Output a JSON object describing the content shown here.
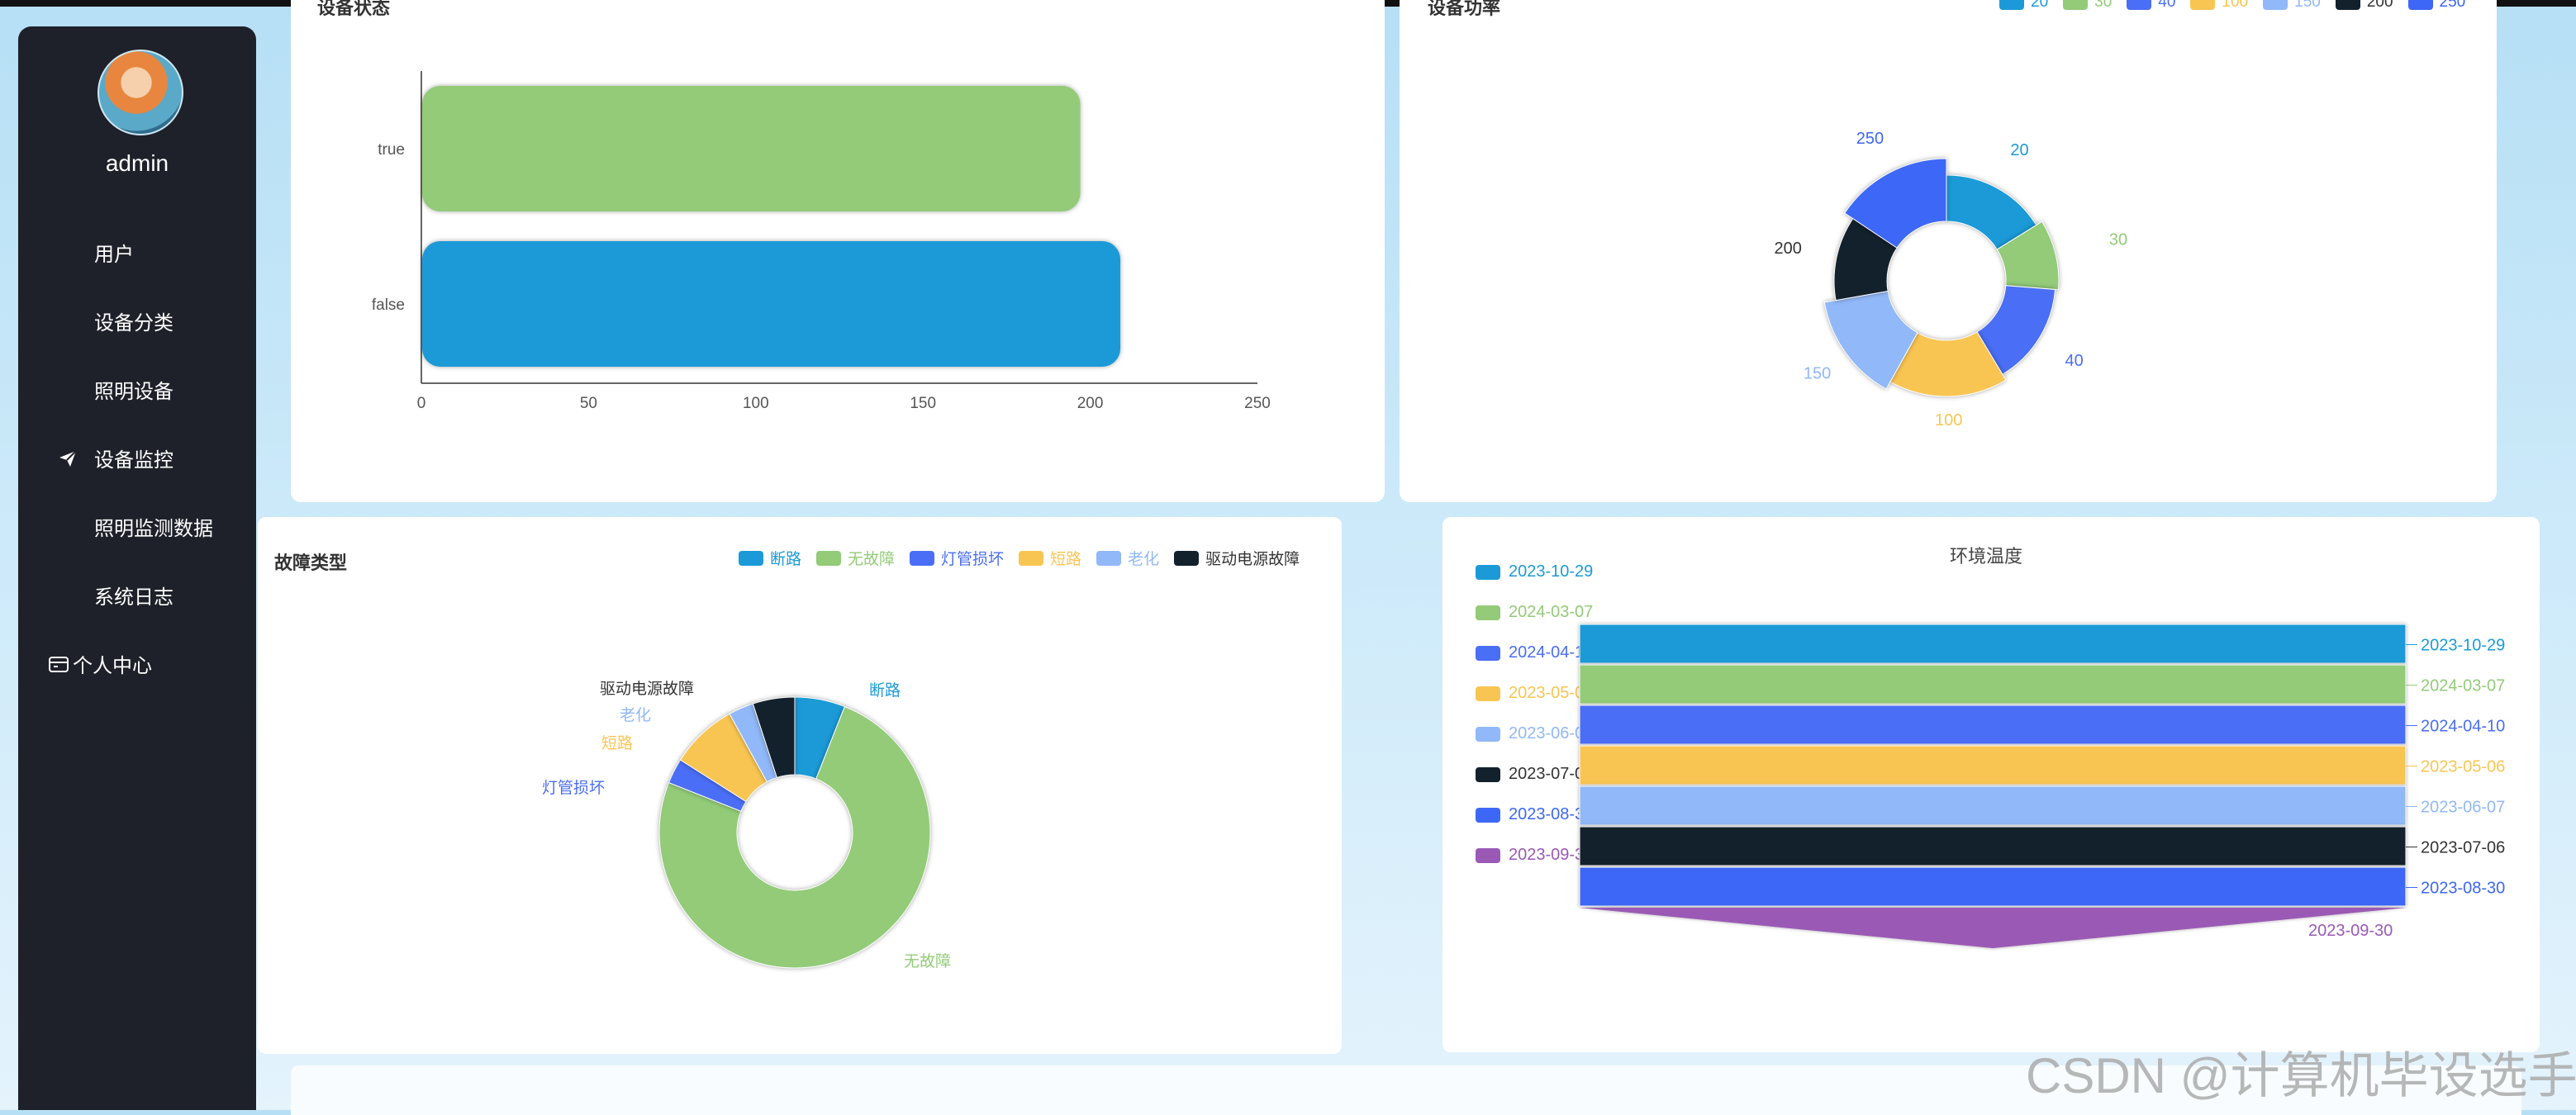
{
  "sidebar": {
    "username": "admin",
    "items": [
      {
        "label": "用户",
        "icon": "grid-icon"
      },
      {
        "label": "设备分类",
        "icon": "grid-icon"
      },
      {
        "label": "照明设备",
        "icon": "grid-icon"
      },
      {
        "label": "设备监控",
        "icon": "send-icon"
      },
      {
        "label": "照明监测数据",
        "icon": "grid-icon"
      },
      {
        "label": "系统日志",
        "icon": "grid-icon"
      },
      {
        "label": "个人中心",
        "icon": "card-icon"
      }
    ]
  },
  "panels": {
    "status": {
      "title": "设备状态"
    },
    "power": {
      "title": "设备功率"
    },
    "fault": {
      "title": "故障类型"
    },
    "env": {
      "title": "环境温度"
    }
  },
  "watermark": "CSDN @计算机毕设选手",
  "chart_data": [
    {
      "type": "bar",
      "orientation": "horizontal",
      "title": "设备状态",
      "categories": [
        "true",
        "false"
      ],
      "values": [
        197,
        209
      ],
      "xlim": [
        0,
        250
      ],
      "xticks": [
        "0",
        "50",
        "100",
        "150",
        "200",
        "250"
      ],
      "colors": [
        "#93cb78",
        "#1b9ad7"
      ]
    },
    {
      "type": "pie",
      "title": "设备功率",
      "labels": [
        "20",
        "30",
        "40",
        "100",
        "150",
        "200",
        "250"
      ],
      "values": [
        1.6,
        1.0,
        1.5,
        1.65,
        1.4,
        1.2,
        1.55
      ],
      "colors": [
        "#1b9ad7",
        "#93cb78",
        "#4a6ef5",
        "#f9c552",
        "#91b8f8",
        "#13212c",
        "#3d67f6"
      ],
      "label_colors": [
        "#1b9ad7",
        "#93cb78",
        "#4a6ef5",
        "#f9c552",
        "#91b8f8",
        "#333333",
        "#3d67f6"
      ],
      "legend": "top-right"
    },
    {
      "type": "pie",
      "title": "故障类型",
      "labels": [
        "断路",
        "无故障",
        "灯管损坏",
        "短路",
        "老化",
        "驱动电源故障"
      ],
      "values": [
        6,
        75,
        3,
        8,
        3,
        5
      ],
      "colors": [
        "#1b9ad7",
        "#93cb78",
        "#4a6ef5",
        "#f9c552",
        "#91b8f8",
        "#13212c"
      ],
      "label_colors": [
        "#1b9ad7",
        "#93cb78",
        "#4a6ef5",
        "#f9c552",
        "#91b8f8",
        "#333333"
      ],
      "legend": "top-right"
    },
    {
      "type": "funnel",
      "title": "环境温度",
      "labels": [
        "2023-10-29",
        "2024-03-07",
        "2024-04-10",
        "2023-05-06",
        "2023-06-07",
        "2023-07-06",
        "2023-08-30",
        "2023-09-30"
      ],
      "left_labels": [
        "2023-10-29",
        "2024-03-07",
        "2024-04-10",
        "2023-05-06",
        "2023-06-07",
        "2023-07-06",
        "2023-08-30",
        "2023-09-30"
      ],
      "right_labels": [
        "2023-10-29",
        "2024-03-07",
        "2024-04-10",
        "2023-05-06",
        "2023-06-07",
        "2023-07-06",
        "2023-08-30",
        "2023-09-30"
      ],
      "colors": [
        "#1b9ad7",
        "#93cb78",
        "#4a6ef5",
        "#f9c552",
        "#91b8f8",
        "#13212c",
        "#3d67f6",
        "#9b59b6"
      ],
      "label_colors": [
        "#1b9ad7",
        "#93cb78",
        "#4a6ef5",
        "#f9c552",
        "#91b8f8",
        "#333333",
        "#3d67f6",
        "#9b59b6"
      ],
      "legend": "left"
    }
  ]
}
